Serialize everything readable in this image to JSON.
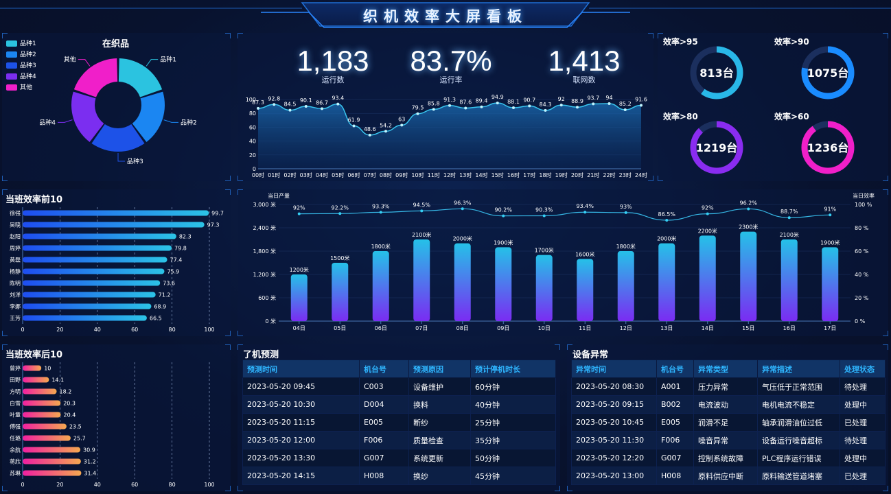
{
  "header": {
    "title": "织机效率大屏看板"
  },
  "weaving": {
    "title": "在织品",
    "legend": [
      {
        "label": "品种1",
        "color": "#2bc3e0"
      },
      {
        "label": "品种2",
        "color": "#1b86f2"
      },
      {
        "label": "品种3",
        "color": "#1d52e8"
      },
      {
        "label": "品种4",
        "color": "#7b2ef0"
      },
      {
        "label": "其他",
        "color": "#f01fc9"
      }
    ],
    "chart_data": {
      "type": "pie",
      "categories": [
        "品种1",
        "品种2",
        "品种3",
        "品种4",
        "其他"
      ],
      "values": [
        20,
        20,
        20,
        20,
        20
      ]
    }
  },
  "kpis": [
    {
      "value": "1,183",
      "label": "运行数"
    },
    {
      "value": "83.7%",
      "label": "运行率"
    },
    {
      "value": "1,413",
      "label": "联网数"
    }
  ],
  "run_rate_chart": {
    "chart_data": {
      "type": "area",
      "x": [
        "00时",
        "01时",
        "02时",
        "03时",
        "04时",
        "05时",
        "06时",
        "07时",
        "08时",
        "09时",
        "10时",
        "11时",
        "12时",
        "13时",
        "14时",
        "15时",
        "16时",
        "17时",
        "18时",
        "19时",
        "20时",
        "21时",
        "22时",
        "23时",
        "24时"
      ],
      "values": [
        87.3,
        92.8,
        84.5,
        90.1,
        86.7,
        93.4,
        61.9,
        48.6,
        54.2,
        63,
        79.5,
        85.8,
        91.3,
        87.6,
        89.4,
        94.9,
        88.1,
        90.7,
        84.3,
        92,
        88.9,
        93.7,
        94,
        85.2,
        91.6
      ],
      "ylim": [
        0,
        100
      ],
      "yticks": [
        0,
        20,
        40,
        60,
        80,
        100
      ]
    }
  },
  "efficiency_rings": [
    {
      "title": "效率>95",
      "value": "813台",
      "fraction": 0.6,
      "color": "#29b8e8"
    },
    {
      "title": "效率>90",
      "value": "1075台",
      "fraction": 0.78,
      "color": "#1a8cff"
    },
    {
      "title": "效率>80",
      "value": "1219台",
      "fraction": 0.88,
      "color": "#8a2cf0"
    },
    {
      "title": "效率>60",
      "value": "1236台",
      "fraction": 0.9,
      "color": "#f01fc9"
    }
  ],
  "top10": {
    "title": "当班效率前10",
    "chart_data": {
      "type": "bar",
      "categories": [
        "徐强",
        "吴晓",
        "赵阳",
        "周婷",
        "黄磊",
        "杨静",
        "陈明",
        "刘洋",
        "李娜",
        "王芳"
      ],
      "values": [
        99.7,
        97.3,
        82.3,
        79.8,
        77.4,
        75.9,
        73.6,
        71.2,
        68.9,
        66.5
      ],
      "xlim": [
        0,
        100
      ],
      "xticks": [
        0,
        20,
        40,
        60,
        80,
        100
      ]
    }
  },
  "bottom10": {
    "title": "当班效率后10",
    "chart_data": {
      "type": "bar",
      "categories": [
        "曾婷",
        "田野",
        "方明",
        "白雪",
        "叶童",
        "傅强",
        "任璐",
        "余航",
        "蒋欣",
        "苏琳"
      ],
      "values": [
        10,
        14.1,
        18.2,
        20.3,
        20.4,
        23.5,
        25.7,
        30.9,
        31.2,
        31.4
      ],
      "xlim": [
        0,
        100
      ],
      "xticks": [
        0,
        20,
        40,
        60,
        80,
        100
      ]
    }
  },
  "production": {
    "chart_data": {
      "type": "bar",
      "categories": [
        "04日",
        "05日",
        "06日",
        "07日",
        "08日",
        "09日",
        "10日",
        "11日",
        "12日",
        "13日",
        "14日",
        "15日",
        "16日",
        "17日"
      ],
      "series": [
        {
          "name": "当日产量",
          "values": [
            1200,
            1500,
            1800,
            2100,
            2000,
            1900,
            1700,
            1600,
            1800,
            2000,
            2200,
            2300,
            2100,
            1900
          ]
        },
        {
          "name": "当日效率",
          "values": [
            92,
            92.2,
            93.3,
            94.5,
            96.3,
            90.2,
            90.3,
            93.4,
            93,
            86.5,
            92,
            96.2,
            88.7,
            91
          ]
        }
      ],
      "bar_labels": [
        "1200米",
        "1500米",
        "1800米",
        "2100米",
        "2000米",
        "1900米",
        "1700米",
        "1600米",
        "1800米",
        "2000米",
        "2200米",
        "2300米",
        "2100米",
        "1900米"
      ],
      "line_labels": [
        "92%",
        "92.2%",
        "93.3%",
        "94.5%",
        "96.3%",
        "90.2%",
        "90.3%",
        "93.4%",
        "93%",
        "86.5%",
        "92%",
        "96.2%",
        "88.7%",
        "91%"
      ],
      "ylabel": "当日产量",
      "y2label": "当日效率",
      "yticks": [
        "0 米",
        "600 米",
        "1,200 米",
        "1,800 米",
        "2,400 米",
        "3,000 米"
      ],
      "y2ticks": [
        "0 %",
        "20 %",
        "40 %",
        "60 %",
        "80 %",
        "100 %"
      ],
      "ylim": [
        0,
        3000
      ],
      "y2lim": [
        0,
        100
      ]
    }
  },
  "stop_forecast": {
    "title": "了机预测",
    "columns": [
      "预测时间",
      "机台号",
      "预测原因",
      "预计停机时长"
    ],
    "rows": [
      [
        "2023-05-20 09:45",
        "C003",
        "设备维护",
        "60分钟"
      ],
      [
        "2023-05-20 10:30",
        "D004",
        "换料",
        "40分钟"
      ],
      [
        "2023-05-20 11:15",
        "E005",
        "断纱",
        "25分钟"
      ],
      [
        "2023-05-20 12:00",
        "F006",
        "质量检查",
        "35分钟"
      ],
      [
        "2023-05-20 13:30",
        "G007",
        "系统更新",
        "50分钟"
      ],
      [
        "2023-05-20 14:15",
        "H008",
        "换纱",
        "45分钟"
      ]
    ]
  },
  "abnormal": {
    "title": "设备异常",
    "columns": [
      "异常时间",
      "机台号",
      "异常类型",
      "异常描述",
      "处理状态"
    ],
    "rows": [
      [
        "2023-05-20 08:30",
        "A001",
        "压力异常",
        "气压低于正常范围",
        "待处理"
      ],
      [
        "2023-05-20 09:15",
        "B002",
        "电流波动",
        "电机电流不稳定",
        "处理中"
      ],
      [
        "2023-05-20 10:45",
        "E005",
        "润滑不足",
        "轴承润滑油位过低",
        "已处理"
      ],
      [
        "2023-05-20 11:30",
        "F006",
        "噪音异常",
        "设备运行噪音超标",
        "待处理"
      ],
      [
        "2023-05-20 12:20",
        "G007",
        "控制系统故障",
        "PLC程序运行错误",
        "处理中"
      ],
      [
        "2023-05-20 13:00",
        "H008",
        "原料供应中断",
        "原料输送管道堵塞",
        "已处理"
      ]
    ]
  }
}
